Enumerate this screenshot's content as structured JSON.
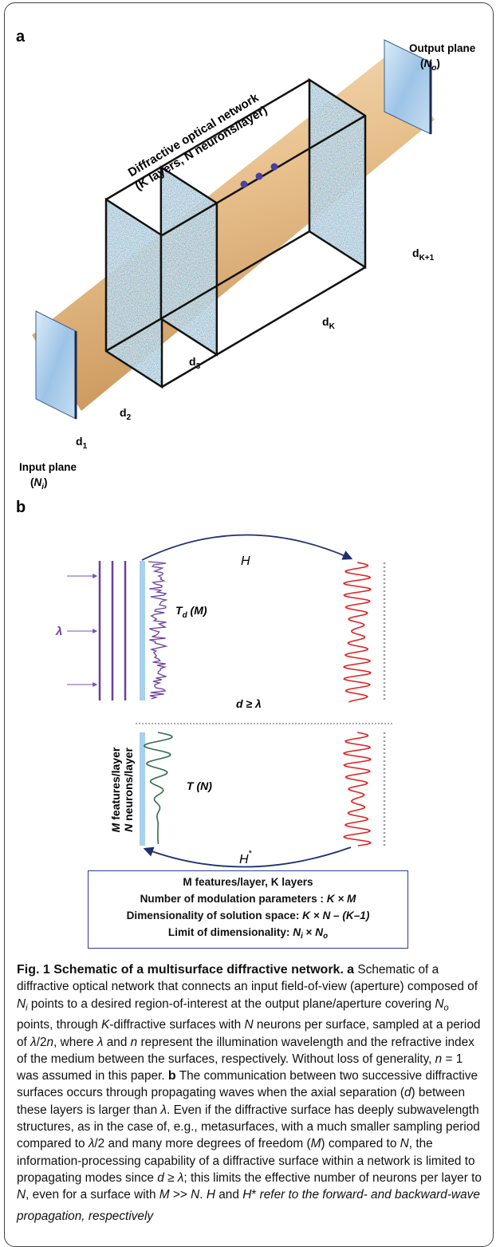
{
  "panel_a": {
    "label": "a",
    "network_label": [
      "Diffractive optical network",
      "(K layers, N neurons/layer)"
    ],
    "output_plane": {
      "title": "Output plane",
      "open": "(",
      "symbol": "N",
      "subscript": "o",
      "close": ")"
    },
    "input_plane": {
      "title": "Input plane",
      "open": "(",
      "symbol": "N",
      "subscript": "i",
      "close": ")"
    },
    "distances": [
      {
        "base": "d",
        "sub": "1"
      },
      {
        "base": "d",
        "sub": "2"
      },
      {
        "base": "d",
        "sub": "3"
      },
      {
        "base": "d",
        "sub": "K"
      },
      {
        "base": "d",
        "sub": "K+1"
      }
    ]
  },
  "panel_b": {
    "label": "b",
    "forward": "H",
    "backward": {
      "base": "H",
      "sup": "*"
    },
    "wavelength": "λ",
    "surface_transmission": {
      "base": "T",
      "sub": "d",
      "arg": " (M)"
    },
    "layer_transmission": {
      "base": "T",
      "arg": " (N)"
    },
    "separation": "d ≥ λ",
    "side_labels": [
      {
        "symbol": "M",
        "text": " features/layer"
      },
      {
        "symbol": "N",
        "text": " neurons/layer"
      }
    ]
  },
  "summary": {
    "lines": [
      [
        "M features/layer, K layers"
      ],
      [
        "Number of modulation parameters : ",
        "K × M"
      ],
      [
        "Dimensionality of solution space: ",
        "K × N – (K–1)"
      ],
      [
        "Limit of dimensionality: ",
        "N",
        "i",
        " × ",
        "N",
        "o"
      ]
    ]
  },
  "caption": {
    "segments": [
      "Fig. 1 Schematic of a multisurface diffractive network.",
      " ",
      "a",
      " Schematic of a diffractive optical network that connects an input field-of-view (aperture) composed of ",
      "N",
      "i",
      " points to a desired region-of-interest at the output plane/aperture covering ",
      "N",
      "o",
      " points, through ",
      "K",
      "-diffractive surfaces with ",
      "N",
      " neurons per surface, sampled at a period of ",
      "λ",
      "/2",
      "n",
      ", where ",
      "λ",
      " and ",
      "n",
      " represent the illumination wavelength and the refractive index of the medium between the surfaces, respectively. Without loss of generality, ",
      "n",
      " = 1 was assumed in this paper. ",
      "b",
      " The communication between two successive diffractive surfaces occurs through propagating waves when the axial separation (",
      "d",
      ") between these layers is larger than ",
      "λ",
      ". Even if the diffractive surface has deeply subwavelength structures, as in the case of, e.g., metasurfaces, with a much smaller sampling period compared to ",
      "λ",
      "/2 and many more degrees of freedom (",
      "M",
      ") compared to ",
      "N",
      ", the information-processing capability of a diffractive surface within a network is limited to propagating modes since ",
      "d",
      " ≥ ",
      "λ",
      "; this limits the effective number of neurons per layer to ",
      "N",
      ", even for a surface with ",
      "M",
      " >> ",
      "N",
      ". ",
      "H",
      " and ",
      "H",
      "*",
      " refer to the forward- and backward-wave propagation, respectively"
    ]
  }
}
